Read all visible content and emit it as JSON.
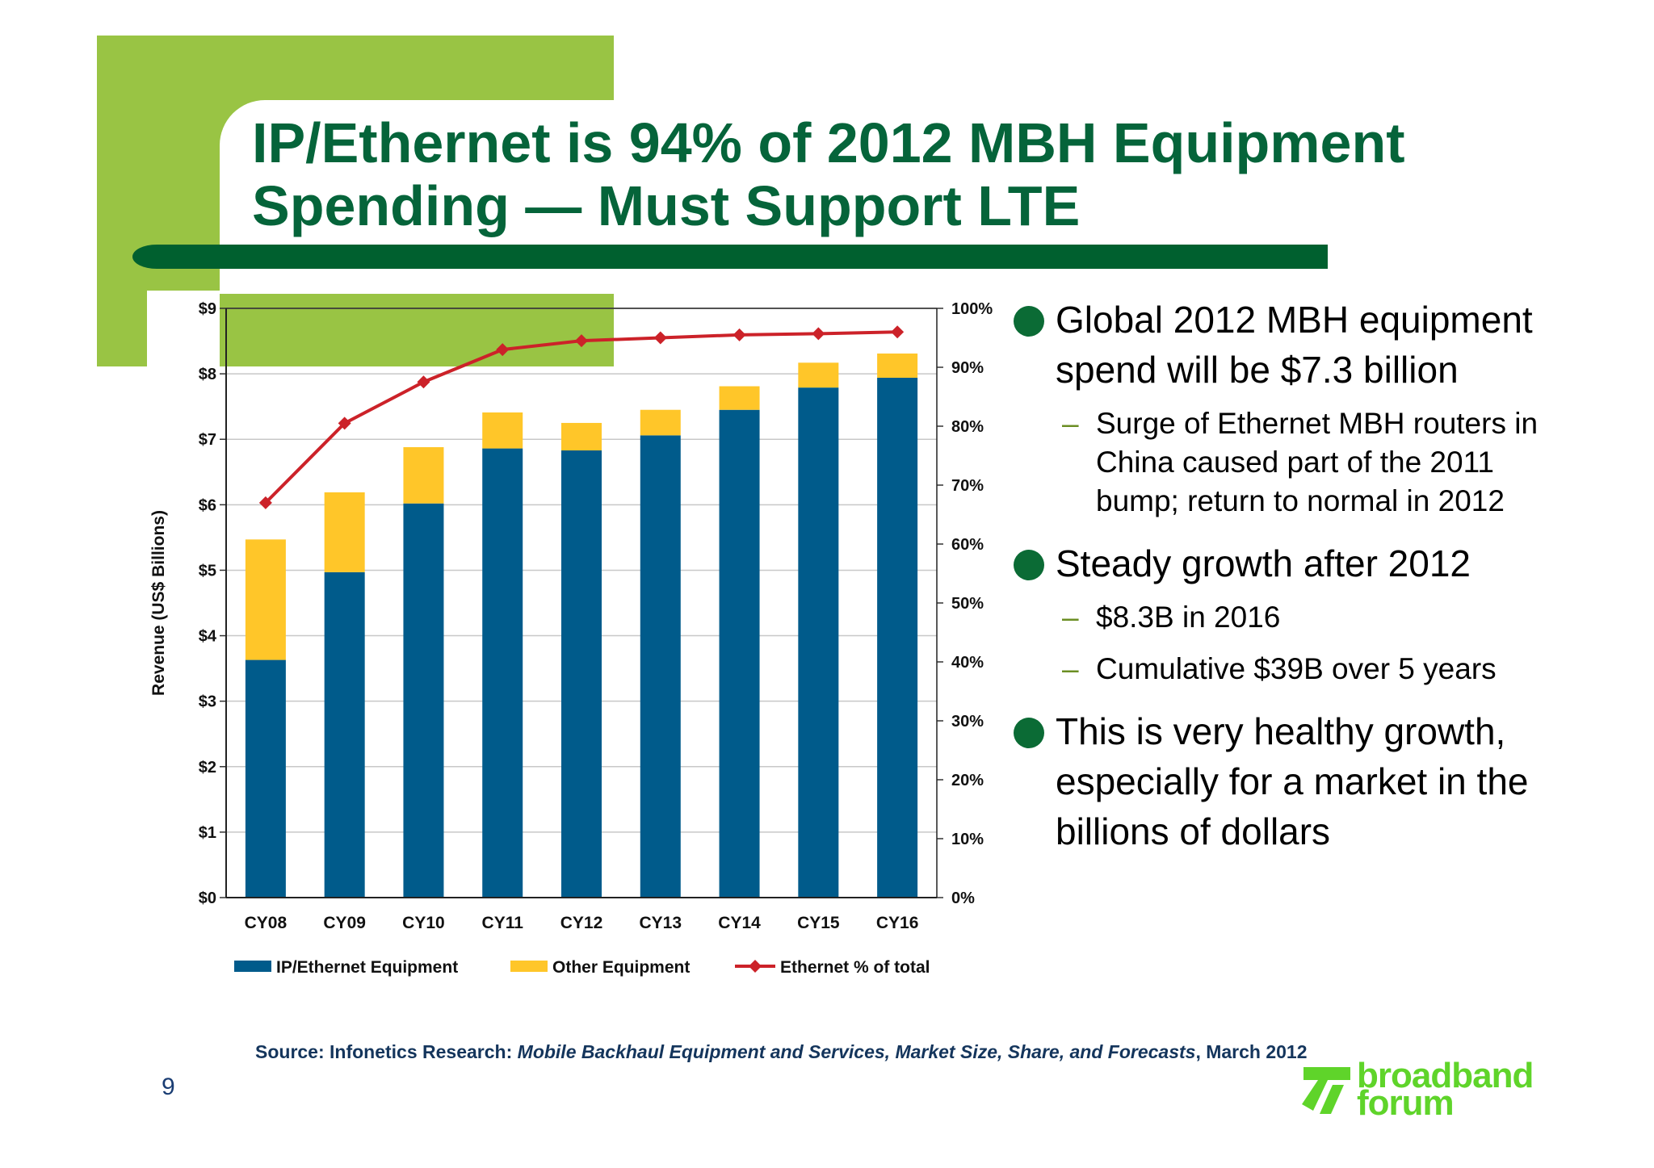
{
  "title": "IP/Ethernet is 94% of 2012 MBH Equipment Spending — Must Support LTE",
  "chart_data": {
    "type": "bar",
    "stacked": true,
    "categories": [
      "CY08",
      "CY09",
      "CY10",
      "CY11",
      "CY12",
      "CY13",
      "CY14",
      "CY15",
      "CY16"
    ],
    "series": [
      {
        "name": "IP/Ethernet Equipment",
        "type": "bar",
        "color": "#005b8b",
        "values": [
          3.63,
          4.97,
          6.02,
          6.86,
          6.83,
          7.06,
          7.45,
          7.79,
          7.94
        ]
      },
      {
        "name": "Other Equipment",
        "type": "bar",
        "color": "#ffc629",
        "values": [
          1.84,
          1.22,
          0.86,
          0.55,
          0.42,
          0.39,
          0.36,
          0.38,
          0.37
        ]
      },
      {
        "name": "Ethernet % of total",
        "type": "line",
        "axis": "right",
        "color": "#cc2229",
        "values": [
          67,
          80.5,
          87.5,
          93,
          94.5,
          95,
          95.5,
          95.7,
          96
        ]
      }
    ],
    "ylabel": "Revenue (US$ Billions)",
    "xlabel": "",
    "ylim": [
      0,
      9
    ],
    "y_ticks": [
      "$0",
      "$1",
      "$2",
      "$3",
      "$4",
      "$5",
      "$6",
      "$7",
      "$8",
      "$9"
    ],
    "y2lim": [
      0,
      100
    ],
    "y2_ticks": [
      "0%",
      "10%",
      "20%",
      "30%",
      "40%",
      "50%",
      "60%",
      "70%",
      "80%",
      "90%",
      "100%"
    ],
    "grid": true,
    "legend": "bottom"
  },
  "bullets": [
    {
      "text": "Global 2012 MBH equipment spend will be $7.3 billion",
      "sub": [
        "Surge of Ethernet MBH routers in China caused part of the 2011 bump; return to normal in 2012"
      ]
    },
    {
      "text": "Steady growth after 2012",
      "sub": [
        "$8.3B in 2016",
        "Cumulative $39B over 5 years"
      ]
    },
    {
      "text": "This is very healthy growth, especially for a market in the billions of dollars",
      "sub": []
    }
  ],
  "source": {
    "prefix": "Source: Infonetics Research: ",
    "publication": "Mobile Backhaul Equipment and Services, Market Size, Share, and Forecasts",
    "date": ", March 2012"
  },
  "page_number": "9",
  "logo": {
    "line1": "broadband",
    "line2": "forum"
  },
  "colors": {
    "title": "#05643a",
    "accent_green": "#99c444",
    "bar_dark": "#00602f"
  }
}
